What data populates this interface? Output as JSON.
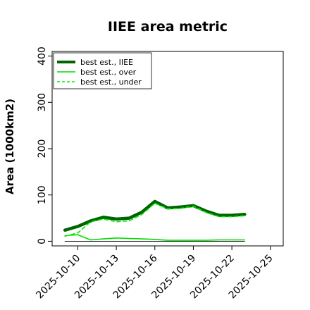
{
  "chart_data": {
    "type": "line",
    "title": "IIEE area metric",
    "xlabel": "",
    "ylabel": "Area (1000km2)",
    "xlim": [
      "2025-10-08",
      "2025-10-26"
    ],
    "ylim": [
      -10,
      410
    ],
    "x_ticks": [
      "2025-10-10",
      "2025-10-13",
      "2025-10-16",
      "2025-10-19",
      "2025-10-22",
      "2025-10-25"
    ],
    "y_ticks": [
      0,
      100,
      200,
      300,
      400
    ],
    "legend_position": "top-left",
    "grid": false,
    "colors": {
      "iiee": "#006400",
      "over": "#00dd00",
      "under": "#00ee00",
      "baseline": "#000000"
    },
    "x": [
      "2025-10-09",
      "2025-10-10",
      "2025-10-11",
      "2025-10-12",
      "2025-10-13",
      "2025-10-14",
      "2025-10-15",
      "2025-10-16",
      "2025-10-17",
      "2025-10-18",
      "2025-10-19",
      "2025-10-20",
      "2025-10-21",
      "2025-10-22",
      "2025-10-23"
    ],
    "series": [
      {
        "name": "best est., IIEE",
        "style": "solid-thick",
        "values": [
          24,
          32,
          44,
          52,
          48,
          50,
          63,
          86,
          72,
          74,
          77,
          65,
          56,
          56,
          58
        ]
      },
      {
        "name": "best est., over",
        "style": "solid",
        "values": [
          12,
          14,
          3,
          5,
          7,
          6,
          5,
          4,
          2,
          2,
          2,
          2,
          3,
          3,
          3
        ]
      },
      {
        "name": "best est., under",
        "style": "dashed",
        "values": [
          11,
          18,
          42,
          48,
          42,
          44,
          58,
          82,
          70,
          71,
          76,
          62,
          53,
          53,
          55
        ]
      },
      {
        "style": "baseline",
        "values": [
          0,
          0,
          0,
          0,
          0,
          0,
          0,
          0,
          0,
          0,
          0,
          0,
          0,
          0,
          0
        ]
      }
    ]
  }
}
